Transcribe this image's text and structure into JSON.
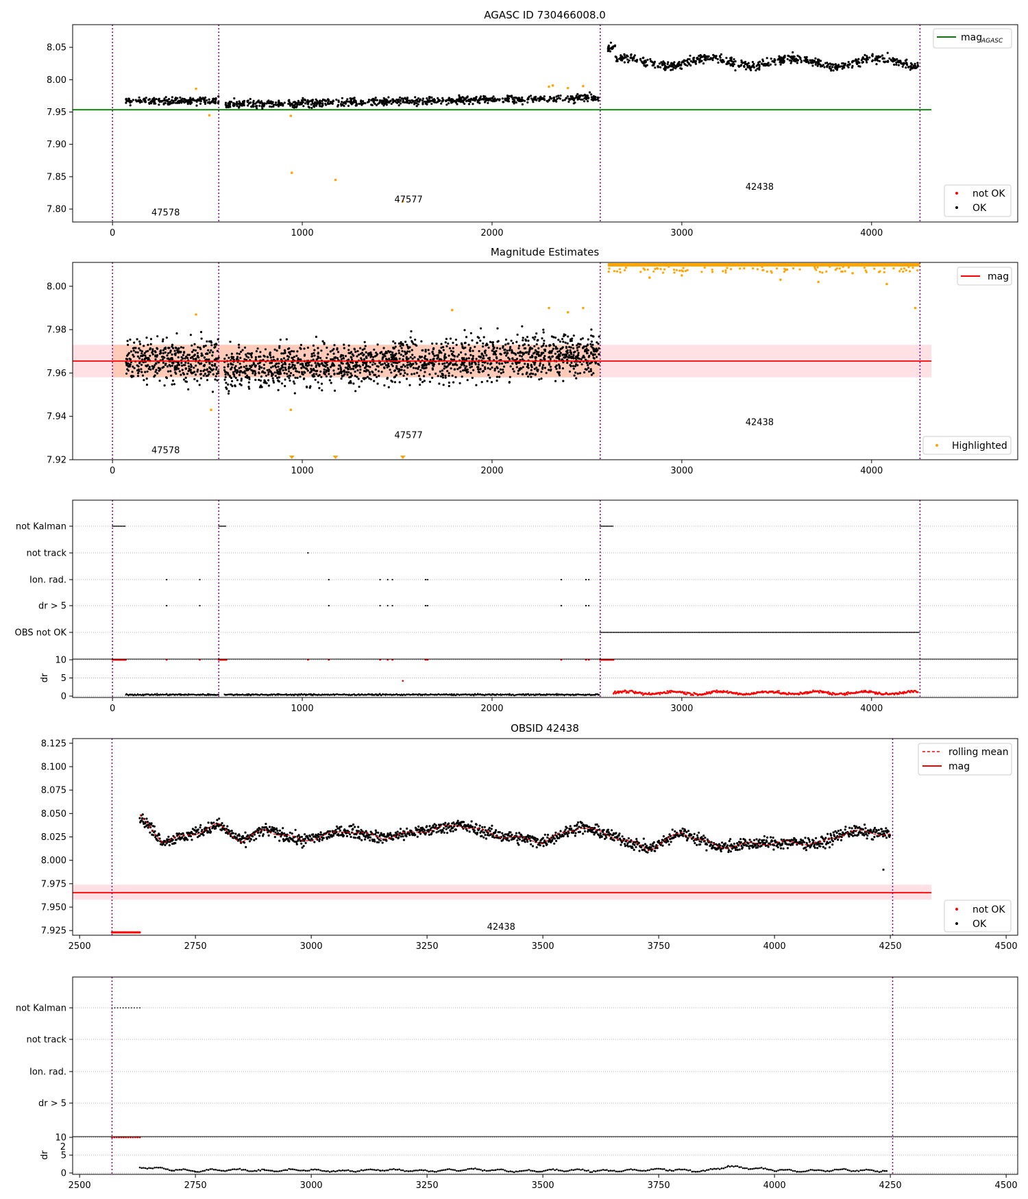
{
  "chart_data": [
    {
      "type": "scatter",
      "title": "AGASC ID 730466008.0",
      "xlim": [
        -210,
        4770
      ],
      "ylim": [
        7.78,
        8.085
      ],
      "xticks": [
        0,
        1000,
        2000,
        3000,
        4000
      ],
      "yticks": [
        7.8,
        7.85,
        7.9,
        7.95,
        8.0,
        8.05
      ],
      "obs_boundaries": [
        0,
        560,
        2570,
        4255
      ],
      "obs_labels": [
        {
          "text": "47578",
          "x": 280,
          "y": 7.79
        },
        {
          "text": "47577",
          "x": 1560,
          "y": 7.81
        },
        {
          "text": "42438",
          "x": 3410,
          "y": 7.83
        }
      ],
      "hline": {
        "label": "mag",
        "label_subscript": "AGASC",
        "value": 7.9535,
        "color": "#008000"
      },
      "series": [
        {
          "name": "not OK",
          "color": "#ff0000"
        },
        {
          "name": "OK",
          "color": "#000000"
        }
      ],
      "segments": [
        {
          "x": [
            70,
            560
          ],
          "y_mean": 7.967,
          "y_spread": 0.006
        },
        {
          "x": [
            590,
            2565
          ],
          "y_mean_start": 7.962,
          "y_mean_end": 7.972,
          "y_spread": 0.006
        },
        {
          "x": [
            2610,
            4245
          ],
          "y_mean": 8.027,
          "y_spread": 0.007
        }
      ],
      "highlighted_points": [
        [
          440,
          7.986
        ],
        [
          510,
          7.945
        ],
        [
          940,
          7.944
        ],
        [
          945,
          7.856
        ],
        [
          1175,
          7.845
        ],
        [
          1530,
          7.812
        ],
        [
          2300,
          7.989
        ],
        [
          2320,
          7.991
        ],
        [
          2400,
          7.987
        ],
        [
          2480,
          7.99
        ]
      ],
      "grid": false,
      "legend": [
        "top-right",
        "bottom-right"
      ]
    },
    {
      "type": "scatter",
      "title": "Magnitude Estimates",
      "xlim": [
        -210,
        4770
      ],
      "ylim": [
        7.92,
        8.011
      ],
      "xticks": [
        0,
        1000,
        2000,
        3000,
        4000
      ],
      "yticks": [
        7.92,
        7.94,
        7.96,
        7.98,
        8.0
      ],
      "obs_boundaries": [
        0,
        560,
        2570,
        4255
      ],
      "obs_labels": [
        {
          "text": "47578",
          "x": 280,
          "y": 7.923
        },
        {
          "text": "47577",
          "x": 1560,
          "y": 7.93
        },
        {
          "text": "42438",
          "x": 3410,
          "y": 7.936
        }
      ],
      "hline": {
        "label": "mag",
        "value": 7.9655,
        "color": "#ff0000"
      },
      "band": [
        7.958,
        7.973
      ],
      "series": [
        {
          "name": "Highlighted",
          "color": "#ffa500"
        }
      ],
      "segments": [
        {
          "x": [
            70,
            560
          ],
          "y_mean": 7.966,
          "y_spread": 0.007
        },
        {
          "x": [
            590,
            2565
          ],
          "y_mean_start": 7.962,
          "y_mean_end": 7.969,
          "y_spread": 0.007
        }
      ],
      "clipped_top_range": [
        2610,
        4255
      ],
      "highlighted_points": [
        [
          440,
          7.987
        ],
        [
          520,
          7.943
        ],
        [
          940,
          7.943
        ],
        [
          1790,
          7.989
        ],
        [
          2300,
          7.99
        ],
        [
          2400,
          7.988
        ],
        [
          2480,
          7.99
        ],
        [
          4230,
          7.99
        ],
        [
          2830,
          8.004
        ],
        [
          3000,
          8.005
        ],
        [
          3520,
          8.003
        ],
        [
          3720,
          8.002
        ],
        [
          3900,
          8.006
        ],
        [
          4080,
          8.001
        ]
      ],
      "bottom_markers": [
        945,
        1175,
        1530
      ],
      "grid": false,
      "legend": "bottom-right"
    },
    {
      "type": "scatter",
      "title": "",
      "xlim": [
        -210,
        4770
      ],
      "xticks": [
        0,
        1000,
        2000,
        3000,
        4000
      ],
      "obs_boundaries": [
        0,
        560,
        2570,
        4255
      ],
      "flag_rows": [
        "not Kalman",
        "not track",
        "Ion. rad.",
        "dr > 5",
        "OBS not OK"
      ],
      "flag_points": {
        "not Kalman": [
          [
            0,
            70
          ],
          [
            560,
            600
          ],
          [
            2570,
            2640
          ]
        ],
        "not track": [
          1030
        ],
        "Ion. rad.": [
          285,
          460,
          1140,
          1410,
          1450,
          1475,
          1650,
          1660,
          2365,
          2495,
          2510
        ],
        "dr > 5": [
          285,
          460,
          1140,
          1410,
          1450,
          1475,
          1650,
          1660,
          2365,
          2495,
          2510
        ],
        "OBS not OK": [
          [
            2570,
            4255
          ]
        ]
      },
      "dr": {
        "ylabel": "dr",
        "yticks": [
          0,
          5,
          10
        ],
        "ok_segments": [
          [
            70,
            560,
            0.4
          ],
          [
            590,
            2565,
            0.4
          ]
        ],
        "not_ok_at_10": [
          [
            0,
            70
          ],
          [
            285
          ],
          [
            460
          ],
          [
            560,
            600
          ],
          [
            1030
          ],
          [
            1140
          ],
          [
            1410
          ],
          [
            1450
          ],
          [
            1475
          ],
          [
            1650
          ],
          [
            1660
          ],
          [
            2365
          ],
          [
            2495
          ],
          [
            2510
          ],
          [
            2570,
            2640
          ]
        ],
        "not_ok_points": [
          [
            1530,
            4.2
          ]
        ],
        "not_ok_segment": [
          2640,
          4245,
          0.9
        ]
      },
      "grid": "horizontal dotted"
    },
    {
      "type": "scatter",
      "title": "OBSID 42438",
      "xlim": [
        2485,
        4525
      ],
      "ylim": [
        7.92,
        8.13
      ],
      "xticks": [
        2500,
        2750,
        3000,
        3250,
        3500,
        3750,
        4000,
        4250,
        4500
      ],
      "yticks": [
        7.925,
        7.95,
        7.975,
        8.0,
        8.025,
        8.05,
        8.075,
        8.1,
        8.125
      ],
      "obs_boundaries": [
        2570,
        4255
      ],
      "obs_labels": [
        {
          "text": "42438",
          "x": 3410,
          "y": 7.926
        }
      ],
      "hline": {
        "label": "mag",
        "value": 7.9655,
        "color": "#ff0000"
      },
      "band": [
        7.958,
        7.974
      ],
      "series": [
        {
          "name": "rolling mean",
          "color": "#ff0000",
          "style": "dashed"
        },
        {
          "name": "mag",
          "color": "#ff0000"
        },
        {
          "name": "not OK",
          "color": "#ff0000"
        },
        {
          "name": "OK",
          "color": "#000000"
        }
      ],
      "trend": [
        [
          2630,
          8.047
        ],
        [
          2680,
          8.02
        ],
        [
          2730,
          8.026
        ],
        [
          2800,
          8.038
        ],
        [
          2850,
          8.02
        ],
        [
          2900,
          8.033
        ],
        [
          2980,
          8.021
        ],
        [
          3080,
          8.032
        ],
        [
          3150,
          8.024
        ],
        [
          3250,
          8.032
        ],
        [
          3320,
          8.038
        ],
        [
          3400,
          8.027
        ],
        [
          3500,
          8.02
        ],
        [
          3580,
          8.036
        ],
        [
          3650,
          8.026
        ],
        [
          3730,
          8.012
        ],
        [
          3800,
          8.03
        ],
        [
          3880,
          8.014
        ],
        [
          3960,
          8.018
        ],
        [
          4040,
          8.019
        ],
        [
          4100,
          8.018
        ],
        [
          4160,
          8.031
        ],
        [
          4250,
          8.028
        ]
      ],
      "not_ok_range": [
        2570,
        2630,
        7.923
      ],
      "outliers": [
        [
          4235,
          7.99
        ]
      ],
      "grid": false,
      "legend": [
        "top-right",
        "bottom-right"
      ]
    },
    {
      "type": "scatter",
      "title": "",
      "xlim": [
        2485,
        4525
      ],
      "xticks": [
        2500,
        2750,
        3000,
        3250,
        3500,
        3750,
        4000,
        4250,
        4500
      ],
      "obs_boundaries": [
        2570,
        4255
      ],
      "flag_rows": [
        "not Kalman",
        "not track",
        "Ion. rad.",
        "dr > 5"
      ],
      "flag_points": {
        "not Kalman": [
          [
            2570,
            2630
          ]
        ]
      },
      "dr": {
        "ylabel": "dr",
        "yticks": [
          0,
          5,
          10
        ],
        "overlap_tick": "2",
        "not_ok_at_10": [
          [
            2570,
            2630
          ]
        ],
        "ok_profile": [
          [
            2630,
            1.6
          ],
          [
            2700,
            1.0
          ],
          [
            2750,
            0.5
          ],
          [
            2830,
            1.0
          ],
          [
            2900,
            0.6
          ],
          [
            2980,
            0.9
          ],
          [
            3060,
            0.5
          ],
          [
            3150,
            0.9
          ],
          [
            3250,
            0.6
          ],
          [
            3350,
            1.0
          ],
          [
            3450,
            0.5
          ],
          [
            3550,
            0.8
          ],
          [
            3650,
            0.6
          ],
          [
            3750,
            1.0
          ],
          [
            3850,
            0.5
          ],
          [
            3900,
            1.9
          ],
          [
            3960,
            1.2
          ],
          [
            4050,
            0.5
          ],
          [
            4150,
            0.9
          ],
          [
            4245,
            0.6
          ]
        ]
      },
      "grid": "horizontal dotted"
    }
  ]
}
